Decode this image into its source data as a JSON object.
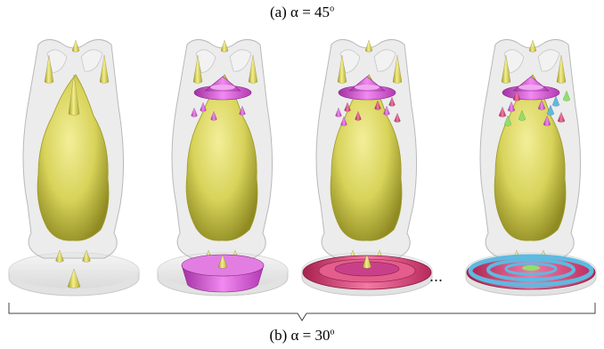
{
  "captions": {
    "top": {
      "text": "(a) α = 45",
      "sup": "o"
    },
    "bottom": {
      "text": "(b) α = 30",
      "sup": "o"
    }
  },
  "ellipsis": "...",
  "colors": {
    "shell": "#dcdcdc",
    "shell_edge": "#b9b9b9",
    "body": "#d8d35a",
    "body_dark": "#9e9a2a",
    "cone": "#d9d04a",
    "magenta": "#d64fd6",
    "crimson": "#d83a72",
    "cyan": "#5fb9e0",
    "green": "#8fe06a",
    "base": "#ececec"
  },
  "figures": [
    {
      "name": "stage-1",
      "base_layer": "none",
      "cap": false,
      "floaters": "none"
    },
    {
      "name": "stage-2",
      "base_layer": "magenta",
      "cap": true,
      "floaters": "magenta"
    },
    {
      "name": "stage-3",
      "base_layer": "crimson",
      "cap": true,
      "floaters": "crimson"
    },
    {
      "name": "stage-final",
      "base_layer": "cyan-rings",
      "cap": true,
      "floaters": "mixed"
    }
  ]
}
